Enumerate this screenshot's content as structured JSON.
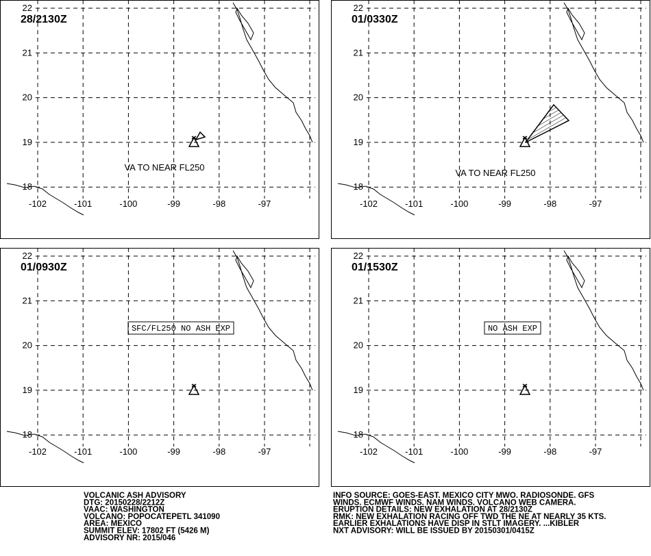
{
  "panels": [
    {
      "time": "28/2130Z",
      "annotation": "VA TO NEAR FL250"
    },
    {
      "time": "01/0330Z",
      "annotation": "VA TO NEAR FL250"
    },
    {
      "time": "01/0930Z",
      "annotation": "SFC/FL250 NO ASH EXP"
    },
    {
      "time": "01/1530Z",
      "annotation": "NO ASH EXP"
    }
  ],
  "lat_labels": [
    22,
    21,
    20,
    19,
    18
  ],
  "lon_labels": [
    -102,
    -101,
    -100,
    -99,
    -98,
    -97
  ],
  "advisory_left": [
    "VOLCANIC ASH ADVISORY",
    "DTG: 20150228/2212Z",
    "VAAC: WASHINGTON",
    "VOLCANO: POPOCATEPETL 341090",
    "AREA: MEXICO",
    "SUMMIT ELEV: 17802 FT (5426 M)",
    "ADVISORY NR: 2015/046"
  ],
  "advisory_right": [
    "INFO SOURCE: GOES-EAST. MEXICO CITY MWO. RADIOSONDE. GFS",
    "WINDS. ECMWF WINDS. NAM WINDS. VOLCANO WEB CAMERA.",
    "ERUPTION DETAILS: NEW EXHALATION AT 28/2130Z",
    "RMK: NEW EXHALATION RACING OFF TWD THE NE AT NEARLY 35 KTS.",
    "EARLIER EXHALATIONS HAVE DISP IN STLT IMAGERY. ...KIBLER",
    "NXT ADVISORY: WILL BE ISSUED BY 20150301/0415Z"
  ]
}
